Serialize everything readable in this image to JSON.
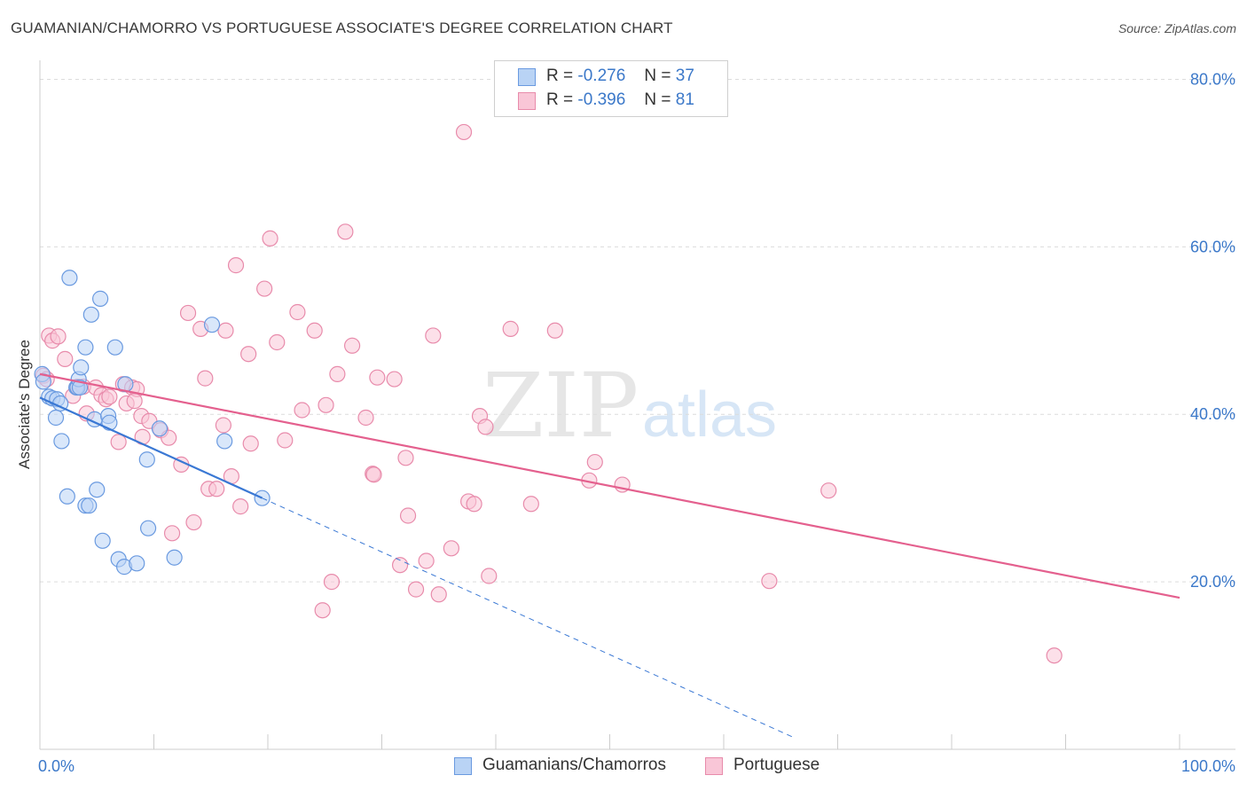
{
  "title": "GUAMANIAN/CHAMORRO VS PORTUGUESE ASSOCIATE'S DEGREE CORRELATION CHART",
  "source": "Source: ZipAtlas.com",
  "watermark": {
    "zip": "ZIP",
    "atlas": "atlas"
  },
  "legend": {
    "rows": [
      {
        "r_label": "R =",
        "r_value": "-0.276",
        "n_label": "N =",
        "n_value": "37",
        "fill": "#b9d3f5",
        "stroke": "#6a9ae0"
      },
      {
        "r_label": "R =",
        "r_value": "-0.396",
        "n_label": "N =",
        "n_value": "81",
        "fill": "#f9c6d7",
        "stroke": "#e88bab"
      }
    ]
  },
  "colors": {
    "blue_fill": "#b9d3f5",
    "blue_stroke": "#6a9ae0",
    "blue_line": "#3a78d4",
    "pink_fill": "#f9c6d7",
    "pink_stroke": "#e88bab",
    "pink_line": "#e4608e",
    "tick_label": "#3b78c9",
    "grid": "#dcdcdc"
  },
  "chart_data": {
    "type": "scatter",
    "title": "GUAMANIAN/CHAMORRO VS PORTUGUESE ASSOCIATE'S DEGREE CORRELATION CHART",
    "xlabel": "",
    "ylabel": "Associate's Degree",
    "xlim": [
      0,
      100
    ],
    "ylim": [
      0,
      81
    ],
    "x_tick_labels": [
      "0.0%",
      "100.0%"
    ],
    "y_ticks": [
      20,
      40,
      60,
      80
    ],
    "y_tick_labels": [
      "20.0%",
      "40.0%",
      "60.0%",
      "80.0%"
    ],
    "grid": true,
    "series": [
      {
        "name": "Guamanians/Chamorros",
        "r": -0.276,
        "n": 37,
        "trend": {
          "x0": 0,
          "y0": 42.0,
          "x1": 19.5,
          "y1": 30.0,
          "dash_x1": 66,
          "dash_y1": 1.5
        },
        "points": [
          [
            0.2,
            44.8
          ],
          [
            0.3,
            43.9
          ],
          [
            0.8,
            42.1
          ],
          [
            1.1,
            41.9
          ],
          [
            1.5,
            41.8
          ],
          [
            1.8,
            41.3
          ],
          [
            1.4,
            39.6
          ],
          [
            1.9,
            36.8
          ],
          [
            2.4,
            30.2
          ],
          [
            2.6,
            56.3
          ],
          [
            3.2,
            43.2
          ],
          [
            3.3,
            43.2
          ],
          [
            3.4,
            44.2
          ],
          [
            3.5,
            43.2
          ],
          [
            3.6,
            45.6
          ],
          [
            4.0,
            48.0
          ],
          [
            4.0,
            29.1
          ],
          [
            4.3,
            29.1
          ],
          [
            4.5,
            51.9
          ],
          [
            4.8,
            39.4
          ],
          [
            5.0,
            31.0
          ],
          [
            5.3,
            53.8
          ],
          [
            5.5,
            24.9
          ],
          [
            6.0,
            39.8
          ],
          [
            6.1,
            39.0
          ],
          [
            6.6,
            48.0
          ],
          [
            6.9,
            22.7
          ],
          [
            7.4,
            21.8
          ],
          [
            7.5,
            43.6
          ],
          [
            8.5,
            22.2
          ],
          [
            9.4,
            34.6
          ],
          [
            9.5,
            26.4
          ],
          [
            10.5,
            38.3
          ],
          [
            11.8,
            22.9
          ],
          [
            15.1,
            50.7
          ],
          [
            16.2,
            36.8
          ],
          [
            19.5,
            30.0
          ]
        ]
      },
      {
        "name": "Portuguese",
        "r": -0.396,
        "n": 81,
        "trend": {
          "x0": 0,
          "y0": 44.8,
          "x1": 100,
          "y1": 18.1
        },
        "points": [
          [
            0.3,
            44.6
          ],
          [
            0.6,
            44.2
          ],
          [
            0.8,
            49.4
          ],
          [
            1.1,
            48.8
          ],
          [
            1.6,
            49.3
          ],
          [
            2.2,
            46.6
          ],
          [
            2.9,
            42.2
          ],
          [
            3.3,
            43.3
          ],
          [
            3.8,
            43.3
          ],
          [
            4.1,
            40.1
          ],
          [
            4.9,
            43.2
          ],
          [
            5.4,
            42.3
          ],
          [
            5.8,
            41.8
          ],
          [
            6.1,
            42.1
          ],
          [
            6.9,
            36.7
          ],
          [
            7.3,
            43.6
          ],
          [
            7.6,
            41.3
          ],
          [
            8.1,
            43.2
          ],
          [
            8.5,
            43.0
          ],
          [
            8.3,
            41.6
          ],
          [
            8.9,
            39.8
          ],
          [
            9.0,
            37.3
          ],
          [
            9.6,
            39.2
          ],
          [
            10.6,
            38.1
          ],
          [
            11.3,
            37.2
          ],
          [
            11.6,
            25.8
          ],
          [
            12.4,
            34.0
          ],
          [
            13.0,
            52.1
          ],
          [
            13.5,
            27.1
          ],
          [
            14.1,
            50.2
          ],
          [
            14.5,
            44.3
          ],
          [
            14.8,
            31.1
          ],
          [
            15.5,
            31.1
          ],
          [
            16.1,
            38.7
          ],
          [
            16.3,
            50.0
          ],
          [
            16.8,
            32.6
          ],
          [
            17.2,
            57.8
          ],
          [
            17.6,
            29.0
          ],
          [
            18.3,
            47.2
          ],
          [
            18.5,
            36.5
          ],
          [
            19.7,
            55.0
          ],
          [
            20.2,
            61.0
          ],
          [
            20.8,
            48.6
          ],
          [
            21.5,
            36.9
          ],
          [
            22.6,
            52.2
          ],
          [
            23.0,
            40.5
          ],
          [
            24.1,
            50.0
          ],
          [
            24.8,
            16.6
          ],
          [
            25.1,
            41.1
          ],
          [
            25.6,
            20.0
          ],
          [
            26.1,
            44.8
          ],
          [
            26.8,
            61.8
          ],
          [
            27.4,
            48.2
          ],
          [
            28.6,
            39.6
          ],
          [
            29.2,
            32.9
          ],
          [
            29.3,
            32.8
          ],
          [
            29.6,
            44.4
          ],
          [
            31.1,
            44.2
          ],
          [
            31.6,
            22.0
          ],
          [
            32.1,
            34.8
          ],
          [
            32.3,
            27.9
          ],
          [
            33.0,
            19.1
          ],
          [
            33.9,
            22.5
          ],
          [
            34.5,
            49.4
          ],
          [
            35.0,
            18.5
          ],
          [
            36.1,
            24.0
          ],
          [
            37.2,
            73.7
          ],
          [
            37.6,
            29.6
          ],
          [
            38.1,
            29.3
          ],
          [
            38.6,
            39.8
          ],
          [
            39.1,
            38.5
          ],
          [
            39.4,
            20.7
          ],
          [
            41.3,
            50.2
          ],
          [
            43.1,
            29.3
          ],
          [
            45.2,
            50.0
          ],
          [
            48.2,
            32.1
          ],
          [
            48.7,
            34.3
          ],
          [
            51.1,
            31.6
          ],
          [
            64.0,
            20.1
          ],
          [
            69.2,
            30.9
          ],
          [
            89.0,
            11.2
          ]
        ]
      }
    ]
  }
}
